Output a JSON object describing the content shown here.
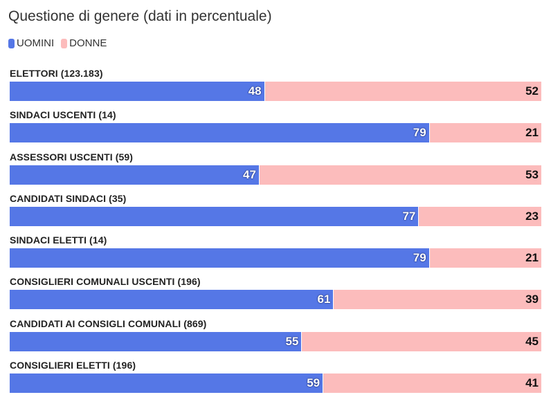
{
  "chart_data": {
    "type": "bar",
    "stacked": true,
    "orientation": "horizontal",
    "title": "Questione di genere (dati in percentuale)",
    "legend_position": "top-left",
    "grid": false,
    "xlim": [
      0,
      100
    ],
    "series": [
      {
        "name": "UOMINI",
        "color": "#5577e6",
        "values": [
          48,
          79,
          47,
          77,
          79,
          61,
          55,
          59
        ]
      },
      {
        "name": "DONNE",
        "color": "#fcbcbc",
        "values": [
          52,
          21,
          53,
          23,
          21,
          39,
          45,
          41
        ]
      }
    ],
    "categories": [
      "ELETTORI (123.183)",
      "SINDACI USCENTI (14)",
      "ASSESSORI USCENTI (59)",
      "CANDIDATI SINDACI (35)",
      "SINDACI ELETTI (14)",
      "CONSIGLIERI COMUNALI USCENTI (196)",
      "CANDIDATI AI CONSIGLI COMUNALI (869)",
      "CONSIGLIERI ELETTI (196)"
    ]
  }
}
